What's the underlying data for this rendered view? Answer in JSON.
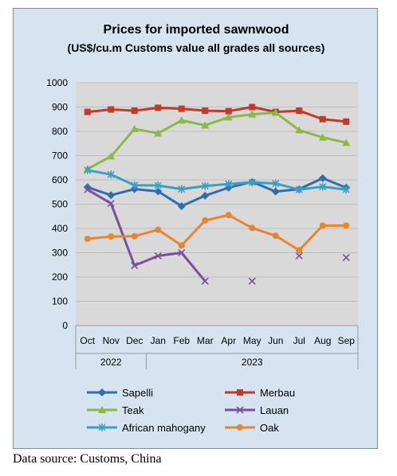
{
  "chart_data": {
    "type": "line",
    "title": "Prices for imported sawnwood",
    "subtitle": "(US$/cu.m Customs value all grades all sources)",
    "categories": [
      "Oct",
      "Nov",
      "Dec",
      "Jan",
      "Feb",
      "Mar",
      "Apr",
      "May",
      "Jun",
      "Jul",
      "Aug",
      "Sep"
    ],
    "year_groups": [
      {
        "label": "2022",
        "span": 3
      },
      {
        "label": "2023",
        "span": 9
      }
    ],
    "ylim": [
      0,
      1000
    ],
    "yticks": [
      0,
      100,
      200,
      300,
      400,
      500,
      600,
      700,
      800,
      900,
      1000
    ],
    "grid": true,
    "legend_position": "bottom",
    "series": [
      {
        "name": "Sapelli",
        "color": "#2e6db4",
        "marker": "diamond",
        "values": [
          570,
          537,
          562,
          553,
          492,
          535,
          568,
          592,
          552,
          562,
          607,
          568
        ]
      },
      {
        "name": "Merbau",
        "color": "#c0392b",
        "marker": "square",
        "values": [
          880,
          890,
          885,
          897,
          893,
          885,
          883,
          900,
          880,
          885,
          850,
          840
        ]
      },
      {
        "name": "Teak",
        "color": "#8cb944",
        "marker": "triangle",
        "values": [
          645,
          697,
          810,
          792,
          845,
          825,
          858,
          870,
          877,
          805,
          775,
          753
        ]
      },
      {
        "name": "Lauan",
        "color": "#7b4f9d",
        "marker": "x",
        "values": [
          560,
          503,
          247,
          287,
          300,
          183,
          null,
          183,
          null,
          287,
          null,
          280
        ]
      },
      {
        "name": "African mahogany",
        "color": "#3b9fc1",
        "marker": "star",
        "values": [
          640,
          622,
          578,
          577,
          562,
          575,
          583,
          590,
          585,
          560,
          572,
          560
        ]
      },
      {
        "name": "Oak",
        "color": "#e8852f",
        "marker": "circle",
        "values": [
          357,
          367,
          368,
          395,
          330,
          433,
          455,
          402,
          370,
          310,
          412,
          412
        ]
      }
    ]
  },
  "source": "Data source: Customs, China"
}
